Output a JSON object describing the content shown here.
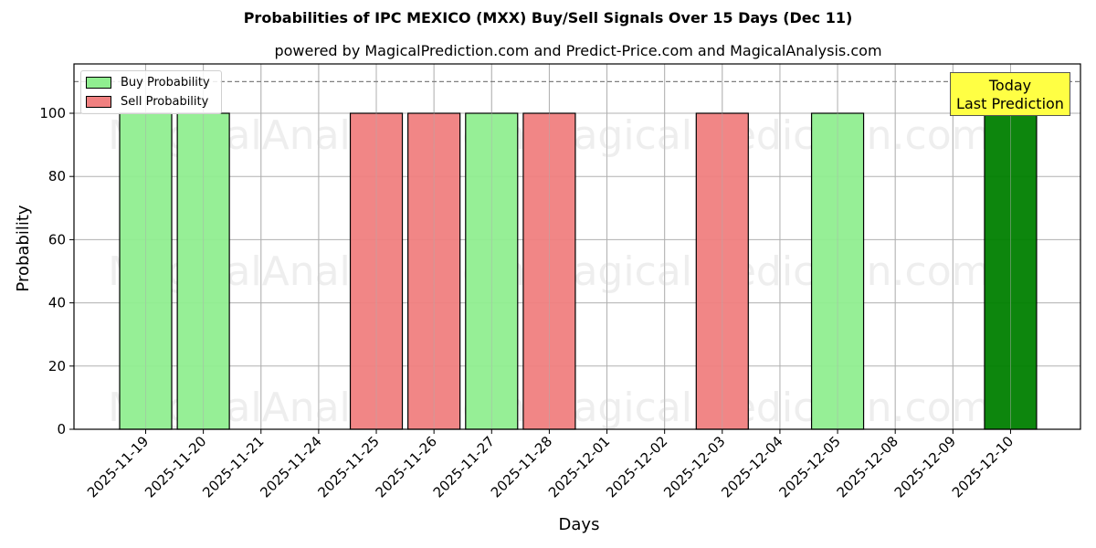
{
  "chart_data": {
    "type": "bar",
    "title": "Probabilities of IPC MEXICO (MXX) Buy/Sell Signals Over 15 Days (Dec 11)",
    "subtitle": "powered by MagicalPrediction.com and Predict-Price.com and MagicalAnalysis.com",
    "xlabel": "Days",
    "ylabel": "Probability",
    "ylim": [
      0,
      115
    ],
    "yticks": [
      0,
      20,
      40,
      60,
      80,
      100
    ],
    "grid": true,
    "reference_line": {
      "y": 110,
      "style": "dashed",
      "color": "#808080"
    },
    "categories": [
      "2025-11-19",
      "2025-11-20",
      "2025-11-21",
      "2025-11-24",
      "2025-11-25",
      "2025-11-26",
      "2025-11-27",
      "2025-11-28",
      "2025-12-01",
      "2025-12-02",
      "2025-12-03",
      "2025-12-04",
      "2025-12-05",
      "2025-12-08",
      "2025-12-09",
      "2025-12-10"
    ],
    "series": [
      {
        "name": "Buy Probability",
        "color": "#90ee90",
        "values": [
          100,
          100,
          0,
          0,
          0,
          0,
          100,
          0,
          0,
          0,
          0,
          0,
          100,
          0,
          0,
          0
        ]
      },
      {
        "name": "Sell Probability",
        "color": "#f08080",
        "values": [
          0,
          0,
          0,
          0,
          100,
          100,
          0,
          100,
          0,
          0,
          100,
          0,
          0,
          0,
          0,
          0
        ]
      },
      {
        "name": "Today Last Prediction",
        "color": "#008000",
        "values": [
          0,
          0,
          0,
          0,
          0,
          0,
          0,
          0,
          0,
          0,
          0,
          0,
          0,
          0,
          0,
          100
        ]
      }
    ],
    "legend": {
      "position": "upper left",
      "entries": [
        "Buy Probability",
        "Sell Probability"
      ]
    },
    "annotation": {
      "text_line1": "Today",
      "text_line2": "Last Prediction",
      "background": "#ffff44"
    },
    "watermarks": [
      "MagicalAnalysis.com",
      "MagicalPrediction.com"
    ]
  }
}
